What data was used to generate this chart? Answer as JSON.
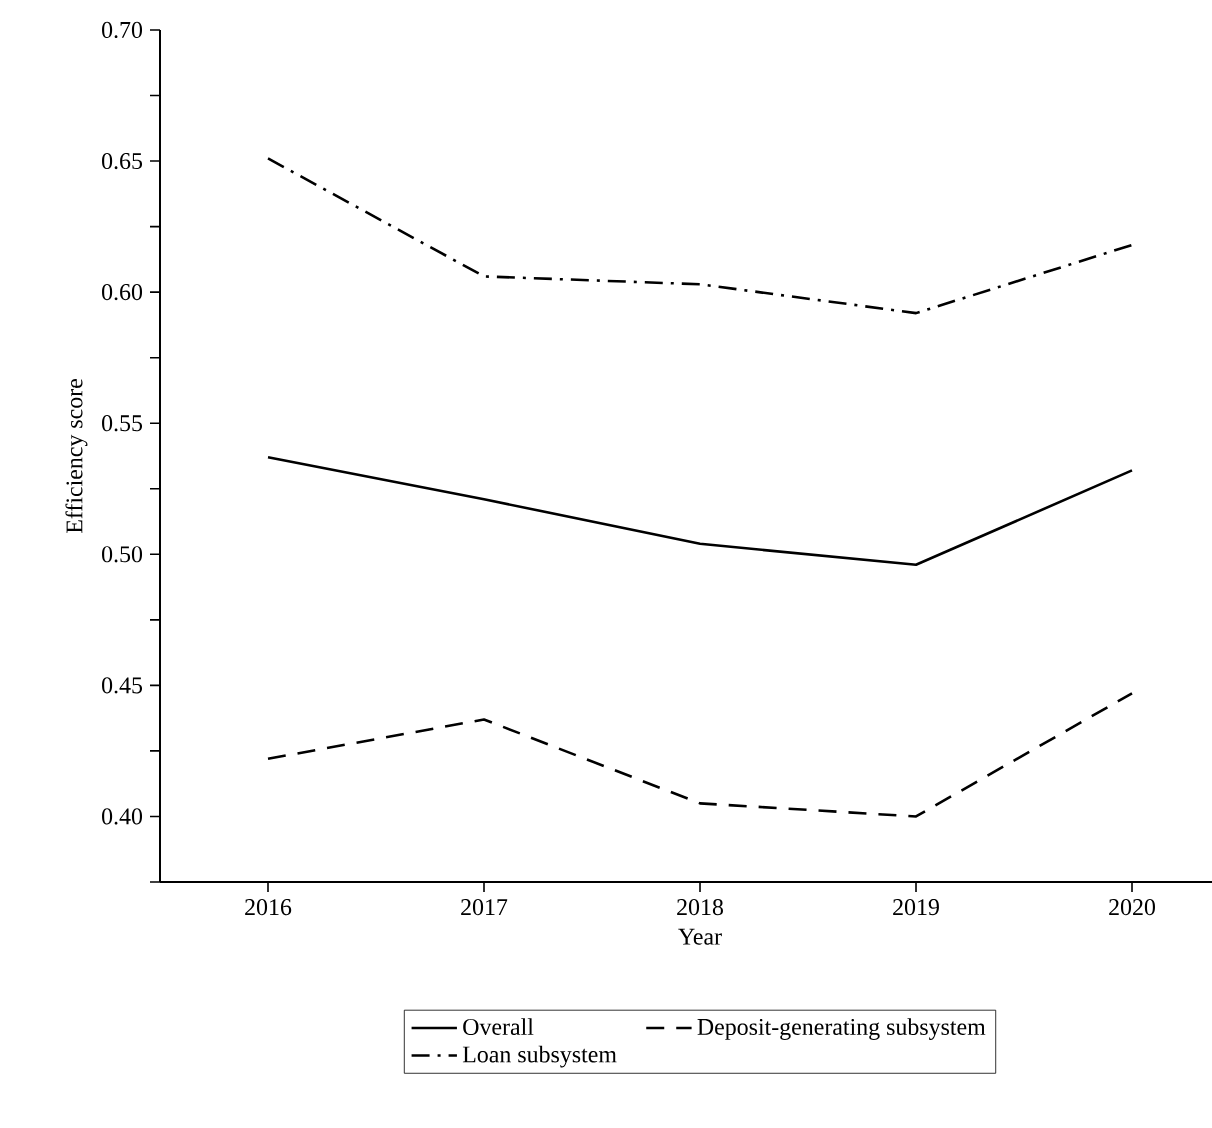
{
  "chart_data": {
    "type": "line",
    "xlabel": "Year",
    "ylabel": "Efficiency score",
    "categories": [
      "2016",
      "2017",
      "2018",
      "2019",
      "2020"
    ],
    "series": [
      {
        "name": "Overall",
        "color": "#000000",
        "line_style": "solid",
        "values": [
          0.537,
          0.521,
          0.504,
          0.496,
          0.532
        ]
      },
      {
        "name": "Deposit-generating subsystem",
        "color": "#000000",
        "line_style": "dashed",
        "values": [
          0.422,
          0.437,
          0.405,
          0.4,
          0.447
        ]
      },
      {
        "name": "Loan subsystem",
        "color": "#000000",
        "line_style": "dashdot",
        "values": [
          0.651,
          0.606,
          0.603,
          0.592,
          0.618
        ]
      }
    ],
    "ylim": [
      0.375,
      0.7
    ],
    "yticks": [
      {
        "value": 0.375,
        "label": null
      },
      {
        "value": 0.4,
        "label": "0.40"
      },
      {
        "value": 0.425,
        "label": null
      },
      0.45,
      {
        "value": 0.475,
        "label": null
      },
      {
        "value": 0.5,
        "label": "0.50"
      },
      {
        "value": 0.525,
        "label": null
      },
      0.55,
      {
        "value": 0.575,
        "label": null
      },
      {
        "value": 0.6,
        "label": "0.60"
      },
      {
        "value": 0.625,
        "label": null
      },
      0.65,
      {
        "value": 0.675,
        "label": null
      },
      {
        "value": 0.7,
        "label": "0.70"
      }
    ],
    "grid": false,
    "legend": "bottom",
    "marker": "none"
  }
}
